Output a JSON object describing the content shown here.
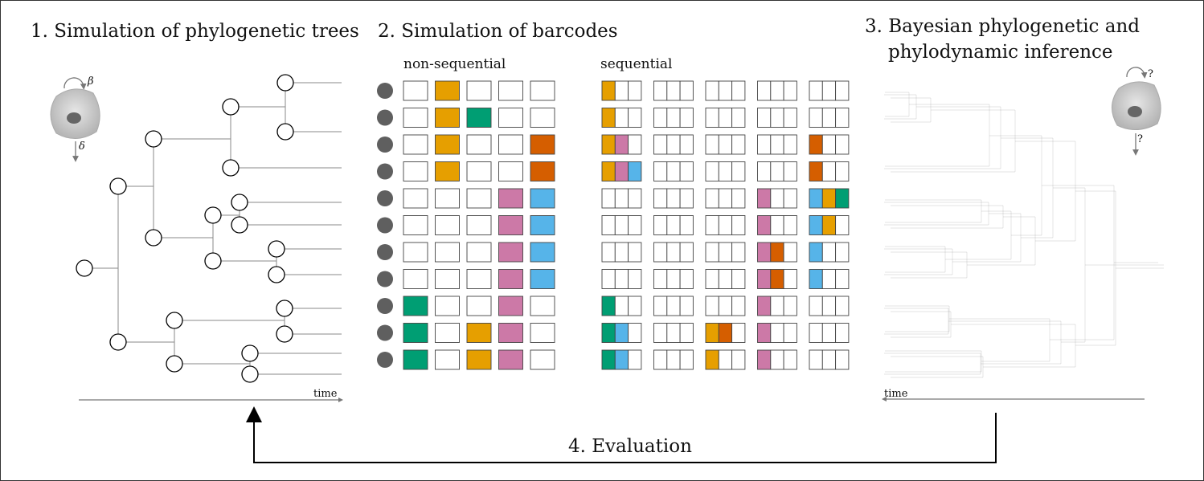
{
  "section1": {
    "title": "1. Simulation of phylogenetic trees",
    "birth_symbol": "β",
    "death_symbol": "δ",
    "time_label": "time"
  },
  "section2": {
    "title": "2. Simulation of barcodes",
    "nonseq_label": "non-sequential",
    "seq_label": "sequential",
    "palette": {
      "O": "#E69F00",
      "G": "#009E73",
      "R": "#D55E00",
      "P": "#CC79A7",
      "B": "#56B4E9"
    },
    "nonsequential_rows": [
      [
        "",
        "O",
        "",
        "",
        ""
      ],
      [
        "",
        "O",
        "G",
        "",
        ""
      ],
      [
        "",
        "O",
        "",
        "",
        "R"
      ],
      [
        "",
        "O",
        "",
        "",
        "R"
      ],
      [
        "",
        "",
        "",
        "P",
        "B"
      ],
      [
        "",
        "",
        "",
        "P",
        "B"
      ],
      [
        "",
        "",
        "",
        "P",
        "B"
      ],
      [
        "",
        "",
        "",
        "P",
        "B"
      ],
      [
        "G",
        "",
        "",
        "P",
        ""
      ],
      [
        "G",
        "",
        "O",
        "P",
        ""
      ],
      [
        "G",
        "",
        "O",
        "P",
        ""
      ]
    ],
    "sequential_rows": [
      [
        [
          "O",
          "",
          ""
        ],
        [
          "",
          "",
          ""
        ],
        [
          "",
          "",
          ""
        ],
        [
          "",
          "",
          ""
        ],
        [
          "",
          "",
          ""
        ]
      ],
      [
        [
          "O",
          "",
          ""
        ],
        [
          "",
          "",
          ""
        ],
        [
          "",
          "",
          ""
        ],
        [
          "",
          "",
          ""
        ],
        [
          "",
          "",
          ""
        ]
      ],
      [
        [
          "O",
          "P",
          ""
        ],
        [
          "",
          "",
          ""
        ],
        [
          "",
          "",
          ""
        ],
        [
          "",
          "",
          ""
        ],
        [
          "R",
          "",
          ""
        ]
      ],
      [
        [
          "O",
          "P",
          "B"
        ],
        [
          "",
          "",
          ""
        ],
        [
          "",
          "",
          ""
        ],
        [
          "",
          "",
          ""
        ],
        [
          "R",
          "",
          ""
        ]
      ],
      [
        [
          "",
          "",
          ""
        ],
        [
          "",
          "",
          ""
        ],
        [
          "",
          "",
          ""
        ],
        [
          "P",
          "",
          ""
        ],
        [
          "B",
          "O",
          "G"
        ]
      ],
      [
        [
          "",
          "",
          ""
        ],
        [
          "",
          "",
          ""
        ],
        [
          "",
          "",
          ""
        ],
        [
          "P",
          "",
          ""
        ],
        [
          "B",
          "O",
          ""
        ]
      ],
      [
        [
          "",
          "",
          ""
        ],
        [
          "",
          "",
          ""
        ],
        [
          "",
          "",
          ""
        ],
        [
          "P",
          "R",
          ""
        ],
        [
          "B",
          "",
          ""
        ]
      ],
      [
        [
          "",
          "",
          ""
        ],
        [
          "",
          "",
          ""
        ],
        [
          "",
          "",
          ""
        ],
        [
          "P",
          "R",
          ""
        ],
        [
          "B",
          "",
          ""
        ]
      ],
      [
        [
          "G",
          "",
          ""
        ],
        [
          "",
          "",
          ""
        ],
        [
          "",
          "",
          ""
        ],
        [
          "P",
          "",
          ""
        ],
        [
          "",
          "",
          ""
        ]
      ],
      [
        [
          "G",
          "B",
          ""
        ],
        [
          "",
          "",
          ""
        ],
        [
          "O",
          "R",
          ""
        ],
        [
          "P",
          "",
          ""
        ],
        [
          "",
          "",
          ""
        ]
      ],
      [
        [
          "G",
          "B",
          ""
        ],
        [
          "",
          "",
          ""
        ],
        [
          "O",
          "",
          ""
        ],
        [
          "P",
          "",
          ""
        ],
        [
          "",
          "",
          ""
        ]
      ]
    ]
  },
  "section3": {
    "title_line1": "3. Bayesian phylogenetic and",
    "title_line2": "phylodynamic inference",
    "unknown_symbol": "?",
    "time_label": "time"
  },
  "section4": {
    "title": "4. Evaluation"
  }
}
